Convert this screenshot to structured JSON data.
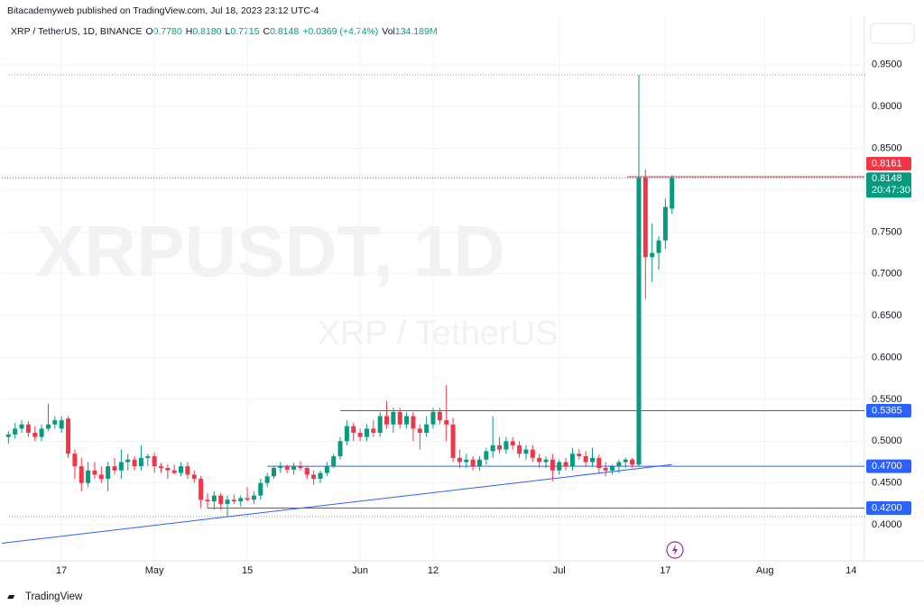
{
  "header": {
    "author_line": "Bitacademyweb published on TradingView.com, Jul 18, 2023 23:12 UTC-4",
    "symbol": "XRP / TetherUS, 1D, BINANCE",
    "legend": [
      {
        "key": "O",
        "value": "0.7780"
      },
      {
        "key": "H",
        "value": "0.8180"
      },
      {
        "key": "L",
        "value": "0.7715"
      },
      {
        "key": "C",
        "value": "0.8148"
      }
    ],
    "change": "+0.0369 (+4.74%)",
    "volume_key": "Vol",
    "volume": "134.189M"
  },
  "watermark": {
    "ticker": "XRPUSDT, 1D",
    "name": "XRP / TetherUS"
  },
  "footer": {
    "brand": "TradingView"
  },
  "chart_data": {
    "type": "candlestick",
    "x": [
      "2023-04-09",
      "2023-04-10",
      "2023-04-11",
      "2023-04-12",
      "2023-04-13",
      "2023-04-14",
      "2023-04-15",
      "2023-04-16",
      "2023-04-17",
      "2023-04-18",
      "2023-04-19",
      "2023-04-20",
      "2023-04-21",
      "2023-04-22",
      "2023-04-23",
      "2023-04-24",
      "2023-04-25",
      "2023-04-26",
      "2023-04-27",
      "2023-04-28",
      "2023-04-29",
      "2023-04-30",
      "2023-05-01",
      "2023-05-02",
      "2023-05-03",
      "2023-05-04",
      "2023-05-05",
      "2023-05-06",
      "2023-05-07",
      "2023-05-08",
      "2023-05-09",
      "2023-05-10",
      "2023-05-11",
      "2023-05-12",
      "2023-05-13",
      "2023-05-14",
      "2023-05-15",
      "2023-05-16",
      "2023-05-17",
      "2023-05-18",
      "2023-05-19",
      "2023-05-20",
      "2023-05-21",
      "2023-05-22",
      "2023-05-23",
      "2023-05-24",
      "2023-05-25",
      "2023-05-26",
      "2023-05-27",
      "2023-05-28",
      "2023-05-29",
      "2023-05-30",
      "2023-05-31",
      "2023-06-01",
      "2023-06-02",
      "2023-06-03",
      "2023-06-04",
      "2023-06-05",
      "2023-06-06",
      "2023-06-07",
      "2023-06-08",
      "2023-06-09",
      "2023-06-10",
      "2023-06-11",
      "2023-06-12",
      "2023-06-13",
      "2023-06-14",
      "2023-06-15",
      "2023-06-16",
      "2023-06-17",
      "2023-06-18",
      "2023-06-19",
      "2023-06-20",
      "2023-06-21",
      "2023-06-22",
      "2023-06-23",
      "2023-06-24",
      "2023-06-25",
      "2023-06-26",
      "2023-06-27",
      "2023-06-28",
      "2023-06-29",
      "2023-06-30",
      "2023-07-01",
      "2023-07-02",
      "2023-07-03",
      "2023-07-04",
      "2023-07-05",
      "2023-07-06",
      "2023-07-07",
      "2023-07-08",
      "2023-07-09",
      "2023-07-10",
      "2023-07-11",
      "2023-07-12",
      "2023-07-13",
      "2023-07-14",
      "2023-07-15",
      "2023-07-16",
      "2023-07-17",
      "2023-07-18"
    ],
    "ohlc": [
      [
        0.505,
        0.512,
        0.497,
        0.508
      ],
      [
        0.508,
        0.522,
        0.503,
        0.515
      ],
      [
        0.515,
        0.525,
        0.51,
        0.52
      ],
      [
        0.52,
        0.524,
        0.505,
        0.51
      ],
      [
        0.51,
        0.518,
        0.5,
        0.505
      ],
      [
        0.505,
        0.52,
        0.5,
        0.515
      ],
      [
        0.515,
        0.545,
        0.512,
        0.52
      ],
      [
        0.52,
        0.53,
        0.515,
        0.525
      ],
      [
        0.515,
        0.53,
        0.51,
        0.525
      ],
      [
        0.527,
        0.53,
        0.48,
        0.485
      ],
      [
        0.485,
        0.49,
        0.455,
        0.47
      ],
      [
        0.47,
        0.48,
        0.44,
        0.45
      ],
      [
        0.45,
        0.475,
        0.445,
        0.465
      ],
      [
        0.465,
        0.475,
        0.455,
        0.46
      ],
      [
        0.46,
        0.47,
        0.45,
        0.455
      ],
      [
        0.455,
        0.475,
        0.44,
        0.47
      ],
      [
        0.47,
        0.48,
        0.46,
        0.465
      ],
      [
        0.465,
        0.49,
        0.455,
        0.475
      ],
      [
        0.475,
        0.485,
        0.465,
        0.478
      ],
      [
        0.478,
        0.482,
        0.465,
        0.47
      ],
      [
        0.47,
        0.495,
        0.465,
        0.48
      ],
      [
        0.48,
        0.485,
        0.47,
        0.482
      ],
      [
        0.482,
        0.486,
        0.462,
        0.47
      ],
      [
        0.47,
        0.474,
        0.462,
        0.468
      ],
      [
        0.468,
        0.472,
        0.455,
        0.465
      ],
      [
        0.465,
        0.472,
        0.46,
        0.462
      ],
      [
        0.462,
        0.475,
        0.458,
        0.47
      ],
      [
        0.47,
        0.475,
        0.455,
        0.46
      ],
      [
        0.46,
        0.465,
        0.45,
        0.455
      ],
      [
        0.455,
        0.458,
        0.42,
        0.43
      ],
      [
        0.43,
        0.438,
        0.42,
        0.428
      ],
      [
        0.428,
        0.44,
        0.418,
        0.435
      ],
      [
        0.435,
        0.438,
        0.418,
        0.425
      ],
      [
        0.425,
        0.435,
        0.41,
        0.43
      ],
      [
        0.43,
        0.436,
        0.425,
        0.428
      ],
      [
        0.428,
        0.435,
        0.422,
        0.432
      ],
      [
        0.432,
        0.445,
        0.428,
        0.43
      ],
      [
        0.43,
        0.44,
        0.425,
        0.435
      ],
      [
        0.435,
        0.455,
        0.43,
        0.45
      ],
      [
        0.45,
        0.462,
        0.445,
        0.458
      ],
      [
        0.458,
        0.47,
        0.455,
        0.468
      ],
      [
        0.468,
        0.475,
        0.462,
        0.47
      ],
      [
        0.47,
        0.472,
        0.462,
        0.466
      ],
      [
        0.466,
        0.474,
        0.46,
        0.47
      ],
      [
        0.47,
        0.476,
        0.465,
        0.468
      ],
      [
        0.468,
        0.47,
        0.455,
        0.46
      ],
      [
        0.46,
        0.465,
        0.448,
        0.455
      ],
      [
        0.455,
        0.465,
        0.45,
        0.462
      ],
      [
        0.462,
        0.475,
        0.458,
        0.47
      ],
      [
        0.47,
        0.485,
        0.468,
        0.482
      ],
      [
        0.482,
        0.505,
        0.478,
        0.5
      ],
      [
        0.5,
        0.525,
        0.495,
        0.518
      ],
      [
        0.518,
        0.522,
        0.5,
        0.51
      ],
      [
        0.51,
        0.515,
        0.5,
        0.505
      ],
      [
        0.505,
        0.52,
        0.5,
        0.515
      ],
      [
        0.515,
        0.525,
        0.505,
        0.51
      ],
      [
        0.51,
        0.535,
        0.505,
        0.53
      ],
      [
        0.53,
        0.548,
        0.515,
        0.52
      ],
      [
        0.52,
        0.54,
        0.51,
        0.535
      ],
      [
        0.535,
        0.54,
        0.515,
        0.52
      ],
      [
        0.52,
        0.535,
        0.515,
        0.53
      ],
      [
        0.53,
        0.535,
        0.5,
        0.515
      ],
      [
        0.515,
        0.52,
        0.49,
        0.51
      ],
      [
        0.51,
        0.53,
        0.505,
        0.52
      ],
      [
        0.52,
        0.54,
        0.515,
        0.535
      ],
      [
        0.535,
        0.54,
        0.52,
        0.525
      ],
      [
        0.525,
        0.567,
        0.5,
        0.52
      ],
      [
        0.52,
        0.528,
        0.475,
        0.48
      ],
      [
        0.48,
        0.49,
        0.468,
        0.475
      ],
      [
        0.475,
        0.485,
        0.468,
        0.478
      ],
      [
        0.478,
        0.482,
        0.465,
        0.47
      ],
      [
        0.47,
        0.482,
        0.465,
        0.478
      ],
      [
        0.478,
        0.492,
        0.472,
        0.488
      ],
      [
        0.488,
        0.53,
        0.48,
        0.495
      ],
      [
        0.495,
        0.505,
        0.485,
        0.49
      ],
      [
        0.49,
        0.505,
        0.485,
        0.5
      ],
      [
        0.5,
        0.505,
        0.49,
        0.495
      ],
      [
        0.495,
        0.5,
        0.48,
        0.485
      ],
      [
        0.485,
        0.495,
        0.478,
        0.49
      ],
      [
        0.49,
        0.495,
        0.475,
        0.48
      ],
      [
        0.48,
        0.485,
        0.468,
        0.475
      ],
      [
        0.475,
        0.482,
        0.468,
        0.478
      ],
      [
        0.478,
        0.485,
        0.452,
        0.465
      ],
      [
        0.465,
        0.478,
        0.46,
        0.475
      ],
      [
        0.475,
        0.48,
        0.465,
        0.47
      ],
      [
        0.47,
        0.492,
        0.465,
        0.485
      ],
      [
        0.485,
        0.49,
        0.478,
        0.482
      ],
      [
        0.482,
        0.488,
        0.47,
        0.475
      ],
      [
        0.475,
        0.492,
        0.47,
        0.48
      ],
      [
        0.48,
        0.484,
        0.462,
        0.468
      ],
      [
        0.468,
        0.475,
        0.458,
        0.465
      ],
      [
        0.465,
        0.472,
        0.46,
        0.47
      ],
      [
        0.47,
        0.478,
        0.462,
        0.475
      ],
      [
        0.475,
        0.48,
        0.468,
        0.478
      ],
      [
        0.478,
        0.48,
        0.468,
        0.472
      ],
      [
        0.472,
        0.938,
        0.47,
        0.815
      ],
      [
        0.815,
        0.825,
        0.67,
        0.72
      ],
      [
        0.72,
        0.76,
        0.69,
        0.725
      ],
      [
        0.725,
        0.745,
        0.705,
        0.74
      ],
      [
        0.74,
        0.79,
        0.73,
        0.78
      ],
      [
        0.778,
        0.818,
        0.7715,
        0.8148
      ]
    ],
    "up_color": "#089981",
    "down_color": "#f23645",
    "xlim": [
      "2023-04-08",
      "2023-08-16"
    ],
    "xticks": [
      {
        "value": "2023-04-17",
        "label": "17"
      },
      {
        "value": "2023-05-01",
        "label": "May"
      },
      {
        "value": "2023-05-15",
        "label": "15"
      },
      {
        "value": "2023-06-01",
        "label": "Jun"
      },
      {
        "value": "2023-06-12",
        "label": "12"
      },
      {
        "value": "2023-07-01",
        "label": "Jul"
      },
      {
        "value": "2023-07-17",
        "label": "17"
      },
      {
        "value": "2023-08-01",
        "label": "Aug"
      },
      {
        "value": "2023-08-14",
        "label": "14"
      }
    ],
    "ylim": [
      0.357,
      1.008
    ],
    "yticks": [
      {
        "value": 0.4,
        "label": "0.4000"
      },
      {
        "value": 0.45,
        "label": "0.4500"
      },
      {
        "value": 0.5,
        "label": "0.5000"
      },
      {
        "value": 0.55,
        "label": "0.5500"
      },
      {
        "value": 0.6,
        "label": "0.6000"
      },
      {
        "value": 0.65,
        "label": "0.6500"
      },
      {
        "value": 0.7,
        "label": "0.7000"
      },
      {
        "value": 0.75,
        "label": "0.7500"
      },
      {
        "value": 0.8,
        "label": "0.8000"
      },
      {
        "value": 0.85,
        "label": "0.8500"
      },
      {
        "value": 0.9,
        "label": "0.9000"
      },
      {
        "value": 0.95,
        "label": "0.9500"
      }
    ],
    "grid": true,
    "levels": [
      {
        "start": "2023-05-29",
        "value": 0.5365,
        "label": "0.5365"
      },
      {
        "start": "2023-05-18",
        "value": 0.47,
        "label": "0.4700"
      },
      {
        "start": "2023-05-09",
        "value": 0.42,
        "label": "0.4200"
      }
    ],
    "level_color": "#2962ff",
    "trendline": {
      "x": [
        "2023-04-08",
        "2023-07-18"
      ],
      "y": [
        0.378,
        0.472
      ]
    },
    "ask": {
      "value": 0.8161,
      "label": "0.8161"
    },
    "last": {
      "value": 0.8148,
      "label": "0.8148",
      "countdown": "20:47:30"
    }
  }
}
